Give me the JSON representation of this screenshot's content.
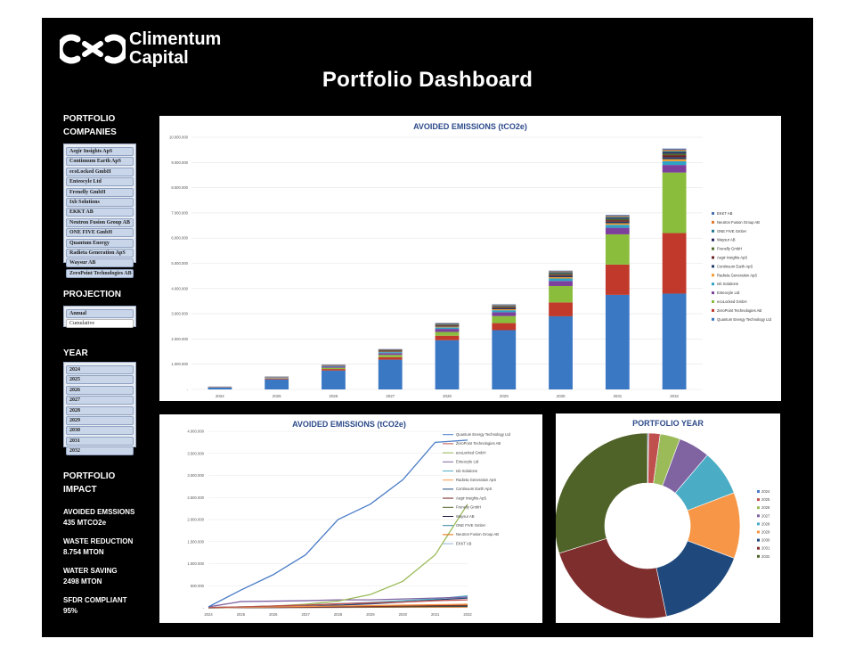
{
  "brand": {
    "name_line1": "Climentum",
    "name_line2": "Capital",
    "logo_icon": "c-infinity-logo-icon"
  },
  "page_title": "Portfolio Dashboard",
  "sidebar": {
    "companies_heading_1": "PORTFOLIO",
    "companies_heading_2": "COMPANIES",
    "companies": [
      "Aegir Insights ApS",
      "Continuum Earth ApS",
      "ecoLocked GmbH",
      "Enteocyle Ltd",
      "Frenelly GmbH",
      "Ixb Solutions",
      "EKKT AB",
      "Neutron Fusion Group AB",
      "ONE FIVE GmbH",
      "Quantum Energy",
      "Radieta Generation ApS",
      "Waysur AB",
      "ZeroPoint Technologies AB"
    ],
    "projection_heading": "PROJECTION",
    "projection_options": [
      "Annual",
      "Cumulative"
    ],
    "projection_selected": "Annual",
    "year_heading": "YEAR",
    "years": [
      "2024",
      "2025",
      "2026",
      "2027",
      "2028",
      "2029",
      "2030",
      "2031",
      "2032"
    ],
    "impact_heading_1": "PORTFOLIO",
    "impact_heading_2": "IMPACT",
    "kpis": [
      {
        "label": "AVOIDED EMSSIONS",
        "value": "435 MTCO2e"
      },
      {
        "label": "WASTE REDUCTION",
        "value": "8.754 MTON"
      },
      {
        "label": "WATER SAVING",
        "value": "2498 MTON"
      },
      {
        "label": "SFDR COMPLIANT",
        "value": "95%"
      }
    ]
  },
  "chart_data": [
    {
      "type": "bar",
      "stacked": true,
      "title": "AVOIDED EMISSIONS (tCO2e)",
      "categories": [
        "2024",
        "2025",
        "2026",
        "2027",
        "2028",
        "2029",
        "2030",
        "2031",
        "2032"
      ],
      "y_ticks": [
        "-",
        "1.000.000",
        "2.000.000",
        "3.000.000",
        "4.000.000",
        "5.000.000",
        "6.000.000",
        "7.000.000",
        "8.000.000",
        "9.000.000",
        "10.000.000"
      ],
      "ylim": [
        0,
        10000000
      ],
      "legend_position": "right",
      "series": [
        {
          "name": "Quantum Energy Technology Ltd",
          "color": "#3a78c4",
          "values": [
            80000,
            400000,
            750000,
            1180000,
            1950000,
            2350000,
            2900000,
            3750000,
            3800000
          ]
        },
        {
          "name": "ZeroPoint Technologies AB",
          "color": "#c0392b",
          "values": [
            10000,
            30000,
            60000,
            100000,
            180000,
            280000,
            550000,
            1200000,
            2400000
          ]
        },
        {
          "name": "ecoLocked GmbH",
          "color": "#8bbd3c",
          "values": [
            5000,
            20000,
            50000,
            90000,
            150000,
            280000,
            650000,
            1200000,
            2400000
          ]
        },
        {
          "name": "Enteocyle Ltd",
          "color": "#7d3f9c",
          "values": [
            5000,
            20000,
            40000,
            70000,
            120000,
            150000,
            200000,
            260000,
            300000
          ]
        },
        {
          "name": "Ixb Solutions",
          "color": "#2ea3c6",
          "values": [
            3000,
            10000,
            20000,
            40000,
            60000,
            80000,
            100000,
            120000,
            150000
          ]
        },
        {
          "name": "Radieta Generation ApS",
          "color": "#f39a2b",
          "values": [
            2000,
            5000,
            10000,
            20000,
            30000,
            40000,
            50000,
            60000,
            80000
          ]
        },
        {
          "name": "Continuum Earth ApS",
          "color": "#1f3c6b",
          "values": [
            2000,
            5000,
            10000,
            20000,
            30000,
            40000,
            50000,
            60000,
            80000
          ]
        },
        {
          "name": "Aegir Insights ApS",
          "color": "#6b2020",
          "values": [
            2000,
            5000,
            10000,
            20000,
            30000,
            40000,
            50000,
            60000,
            80000
          ]
        },
        {
          "name": "Frenelly GmbH",
          "color": "#4f6b2a",
          "values": [
            1000,
            5000,
            10000,
            15000,
            25000,
            30000,
            40000,
            50000,
            60000
          ]
        },
        {
          "name": "Waysur AB",
          "color": "#2a2560",
          "values": [
            1000,
            5000,
            10000,
            15000,
            20000,
            25000,
            30000,
            40000,
            50000
          ]
        },
        {
          "name": "ONE FIVE GmbH",
          "color": "#1f7a8c",
          "values": [
            1000,
            3000,
            5000,
            10000,
            15000,
            20000,
            30000,
            40000,
            50000
          ]
        },
        {
          "name": "Neutron Fusion Group AB",
          "color": "#e0782b",
          "values": [
            1000,
            3000,
            5000,
            10000,
            15000,
            20000,
            30000,
            40000,
            50000
          ]
        },
        {
          "name": "EKKT AB",
          "color": "#4a6fb0",
          "values": [
            1000,
            3000,
            5000,
            10000,
            15000,
            20000,
            30000,
            40000,
            50000
          ]
        }
      ],
      "legend_order": [
        "EKKT AB",
        "Neutron Fusion Group AB",
        "ONE FIVE GmbH",
        "Waysur AB",
        "Frenelly GmbH",
        "Aegir Insights ApS",
        "Continuum Earth ApS",
        "Radieta Generation ApS",
        "Ixb Solutions",
        "Enteocyle Ltd",
        "ecoLocked GmbH",
        "ZeroPoint Technologies AB",
        "Quantum Energy Technology Ltd"
      ]
    },
    {
      "type": "line",
      "title": "AVOIDED EMISSIONS (tCO2e)",
      "x": [
        "2024",
        "2025",
        "2026",
        "2027",
        "2028",
        "2029",
        "2030",
        "2031",
        "2032"
      ],
      "y_ticks": [
        "-",
        "500.000",
        "1.000.000",
        "1.500.000",
        "2.000.000",
        "2.500.000",
        "3.000.000",
        "3.500.000",
        "4.000.000"
      ],
      "ylim": [
        0,
        4000000
      ],
      "legend_position": "right",
      "series": [
        {
          "name": "Quantum Energy Technology Ltd",
          "color": "#4a7cc7",
          "values": [
            20000,
            400000,
            750000,
            1200000,
            2000000,
            2350000,
            2900000,
            3750000,
            3800000
          ]
        },
        {
          "name": "ZeroPoint Technologies AB",
          "color": "#c0504d",
          "values": [
            5000,
            20000,
            40000,
            60000,
            90000,
            110000,
            130000,
            160000,
            180000
          ]
        },
        {
          "name": "ecoLocked GmbH",
          "color": "#9bbb59",
          "values": [
            5000,
            20000,
            40000,
            80000,
            150000,
            300000,
            600000,
            1200000,
            2350000
          ]
        },
        {
          "name": "Enteocyle Ltd",
          "color": "#8064a2",
          "values": [
            20000,
            140000,
            150000,
            160000,
            180000,
            180000,
            200000,
            220000,
            240000
          ]
        },
        {
          "name": "Ixb Solutions",
          "color": "#4bacc6",
          "values": [
            5000,
            20000,
            40000,
            60000,
            90000,
            120000,
            160000,
            200000,
            270000
          ]
        },
        {
          "name": "Radieta Generation ApS",
          "color": "#f79646",
          "values": [
            2000,
            10000,
            20000,
            30000,
            40000,
            50000,
            60000,
            70000,
            80000
          ]
        },
        {
          "name": "Continuum Earth ApS",
          "color": "#1f497d",
          "values": [
            2000,
            10000,
            20000,
            40000,
            60000,
            90000,
            130000,
            180000,
            220000
          ]
        },
        {
          "name": "Aegir Insights ApS",
          "color": "#7f2e2e",
          "values": [
            2000,
            5000,
            10000,
            15000,
            20000,
            30000,
            40000,
            50000,
            60000
          ]
        },
        {
          "name": "Frenelly GmbH",
          "color": "#4f6228",
          "values": [
            1000,
            5000,
            10000,
            15000,
            20000,
            25000,
            30000,
            40000,
            50000
          ]
        },
        {
          "name": "Waysur AB",
          "color": "#1c1a3e",
          "values": [
            1000,
            5000,
            10000,
            15000,
            20000,
            25000,
            30000,
            35000,
            40000
          ]
        },
        {
          "name": "ONE FIVE GmbH",
          "color": "#31859c",
          "values": [
            1000,
            3000,
            5000,
            10000,
            15000,
            20000,
            25000,
            30000,
            35000
          ]
        },
        {
          "name": "Neutron Fusion Group AB",
          "color": "#e36c09",
          "values": [
            1000,
            3000,
            5000,
            8000,
            10000,
            12000,
            15000,
            18000,
            20000
          ]
        },
        {
          "name": "EKKT AB",
          "color": "#95b3d7",
          "values": [
            1000,
            3000,
            5000,
            8000,
            10000,
            12000,
            15000,
            18000,
            20000
          ]
        }
      ]
    },
    {
      "type": "pie",
      "donut": true,
      "title": "PORTFOLIO YEAR",
      "legend_position": "right",
      "labels": [
        "2024",
        "2025",
        "2026",
        "2027",
        "2028",
        "2029",
        "2030",
        "2031",
        "2032"
      ],
      "colors": [
        "#4a7cc7",
        "#c0504d",
        "#9bbb59",
        "#8064a2",
        "#4bacc6",
        "#f79646",
        "#1f497d",
        "#7f2e2e",
        "#4f6228"
      ],
      "values": [
        0.2,
        2.0,
        3.5,
        5.5,
        8.0,
        11.5,
        16.0,
        23.5,
        29.8
      ]
    }
  ]
}
